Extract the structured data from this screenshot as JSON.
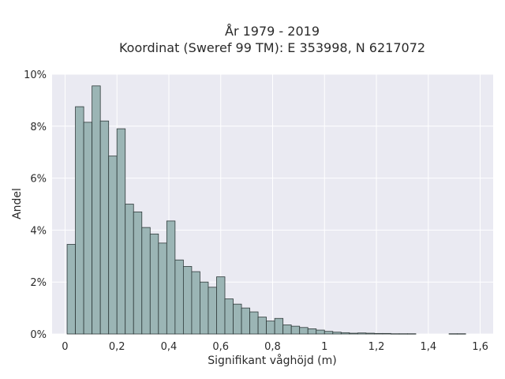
{
  "chart_data": {
    "type": "bar",
    "subtype": "histogram",
    "title": "År 1979 - 2019",
    "subtitle": "Koordinat (Sweref 99 TM): E 353998, N 6217072",
    "xlabel": "Signifikant våghöjd (m)",
    "ylabel": "Andel",
    "xlim": [
      -0.05,
      1.65
    ],
    "ylim": [
      0,
      10
    ],
    "xticks": [
      0,
      0.2,
      0.4,
      0.6,
      0.8,
      1,
      1.2,
      1.4,
      1.6
    ],
    "xtick_labels": [
      "0",
      "0,2",
      "0,4",
      "0,6",
      "0,8",
      "1",
      "1,2",
      "1,4",
      "1,6"
    ],
    "yticks": [
      0,
      2,
      4,
      6,
      8,
      10
    ],
    "ytick_labels": [
      "0%",
      "2%",
      "4%",
      "6%",
      "8%",
      "10%"
    ],
    "bin_width": 0.032,
    "bin_start": 0.008,
    "values": [
      3.45,
      8.75,
      8.15,
      9.55,
      8.2,
      6.85,
      7.9,
      5.0,
      4.7,
      4.1,
      3.85,
      3.5,
      4.35,
      2.85,
      2.6,
      2.4,
      2.0,
      1.8,
      2.2,
      1.35,
      1.15,
      1.0,
      0.85,
      0.65,
      0.5,
      0.6,
      0.35,
      0.3,
      0.25,
      0.2,
      0.15,
      0.1,
      0.07,
      0.05,
      0.03,
      0.04,
      0.03,
      0.02,
      0.02,
      0.01,
      0.01,
      0.01,
      0.0,
      0.0,
      0.0,
      0.0,
      0.01,
      0.01
    ],
    "grid": true,
    "colors": {
      "background": "#eaeaf2",
      "bar_fill": "#9bb5b5",
      "bar_edge": "#2f3a3a",
      "grid": "#ffffff"
    }
  }
}
